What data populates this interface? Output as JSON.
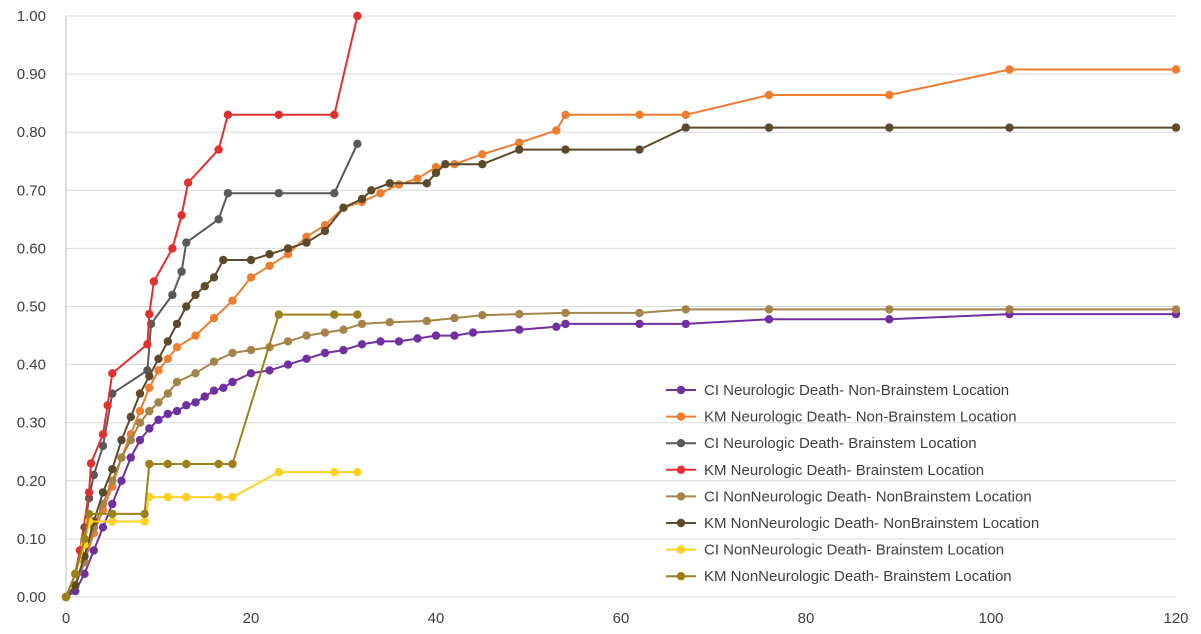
{
  "chart_data": {
    "type": "line",
    "title": "",
    "xlabel": "",
    "ylabel": "",
    "xlim": [
      0,
      120
    ],
    "ylim": [
      0,
      1
    ],
    "x_ticks": [
      "0",
      "20",
      "40",
      "60",
      "80",
      "100",
      "120"
    ],
    "y_ticks": [
      "0.00",
      "0.10",
      "0.20",
      "0.30",
      "0.40",
      "0.50",
      "0.60",
      "0.70",
      "0.80",
      "0.90",
      "1.00"
    ],
    "grid": "horizontal",
    "legend_position": "bottom-right",
    "series": [
      {
        "name": "CI Neurologic Death- Non-Brainstem Location",
        "color": "#7030a0",
        "points": [
          [
            0,
            0
          ],
          [
            1,
            0.01
          ],
          [
            2,
            0.04
          ],
          [
            3,
            0.08
          ],
          [
            4,
            0.12
          ],
          [
            5,
            0.16
          ],
          [
            6,
            0.2
          ],
          [
            7,
            0.24
          ],
          [
            8,
            0.27
          ],
          [
            9,
            0.29
          ],
          [
            10,
            0.305
          ],
          [
            11,
            0.315
          ],
          [
            12,
            0.32
          ],
          [
            13,
            0.33
          ],
          [
            14,
            0.335
          ],
          [
            15,
            0.345
          ],
          [
            16,
            0.355
          ],
          [
            17,
            0.36
          ],
          [
            18,
            0.37
          ],
          [
            20,
            0.385
          ],
          [
            22,
            0.39
          ],
          [
            24,
            0.4
          ],
          [
            26,
            0.41
          ],
          [
            28,
            0.42
          ],
          [
            30,
            0.425
          ],
          [
            32,
            0.435
          ],
          [
            34,
            0.44
          ],
          [
            36,
            0.44
          ],
          [
            38,
            0.445
          ],
          [
            40,
            0.45
          ],
          [
            42,
            0.45
          ],
          [
            44,
            0.455
          ],
          [
            49,
            0.46
          ],
          [
            53,
            0.465
          ],
          [
            54,
            0.47
          ],
          [
            62,
            0.47
          ],
          [
            67,
            0.47
          ],
          [
            76,
            0.478
          ],
          [
            89,
            0.478
          ],
          [
            102,
            0.487
          ],
          [
            120,
            0.487
          ]
        ]
      },
      {
        "name": "KM Neurologic Death- Non-Brainstem Location",
        "color": "#ed7d31",
        "points": [
          [
            0,
            0
          ],
          [
            1,
            0.02
          ],
          [
            2,
            0.06
          ],
          [
            3,
            0.11
          ],
          [
            4,
            0.15
          ],
          [
            5,
            0.19
          ],
          [
            6,
            0.24
          ],
          [
            7,
            0.28
          ],
          [
            8,
            0.32
          ],
          [
            9,
            0.36
          ],
          [
            10,
            0.39
          ],
          [
            11,
            0.41
          ],
          [
            12,
            0.43
          ],
          [
            14,
            0.45
          ],
          [
            16,
            0.48
          ],
          [
            18,
            0.51
          ],
          [
            20,
            0.55
          ],
          [
            22,
            0.57
          ],
          [
            24,
            0.59
          ],
          [
            26,
            0.62
          ],
          [
            28,
            0.64
          ],
          [
            30,
            0.67
          ],
          [
            32,
            0.68
          ],
          [
            34,
            0.695
          ],
          [
            36,
            0.71
          ],
          [
            38,
            0.72
          ],
          [
            40,
            0.74
          ],
          [
            42,
            0.745
          ],
          [
            45,
            0.762
          ],
          [
            49,
            0.782
          ],
          [
            53,
            0.803
          ],
          [
            54,
            0.83
          ],
          [
            62,
            0.83
          ],
          [
            67,
            0.83
          ],
          [
            76,
            0.864
          ],
          [
            89,
            0.864
          ],
          [
            102,
            0.908
          ],
          [
            120,
            0.908
          ]
        ]
      },
      {
        "name": "CI Neurologic Death- Brainstem Location",
        "color": "#595959",
        "points": [
          [
            0,
            0
          ],
          [
            1,
            0.04
          ],
          [
            2,
            0.12
          ],
          [
            2.5,
            0.17
          ],
          [
            3,
            0.21
          ],
          [
            4,
            0.26
          ],
          [
            5,
            0.35
          ],
          [
            8.8,
            0.39
          ],
          [
            9.2,
            0.47
          ],
          [
            11.5,
            0.52
          ],
          [
            12.5,
            0.56
          ],
          [
            13,
            0.61
          ],
          [
            16.5,
            0.65
          ],
          [
            17.5,
            0.695
          ],
          [
            23,
            0.695
          ],
          [
            29,
            0.695
          ],
          [
            31.5,
            0.78
          ]
        ]
      },
      {
        "name": "KM Neurologic Death- Brainstem Location",
        "color": "#e03030",
        "points": [
          [
            0,
            0
          ],
          [
            1,
            0.04
          ],
          [
            1.5,
            0.08
          ],
          [
            2.5,
            0.18
          ],
          [
            2.7,
            0.23
          ],
          [
            4,
            0.28
          ],
          [
            4.5,
            0.33
          ],
          [
            5,
            0.385
          ],
          [
            8.8,
            0.435
          ],
          [
            9,
            0.487
          ],
          [
            9.5,
            0.543
          ],
          [
            11.5,
            0.6
          ],
          [
            12.5,
            0.657
          ],
          [
            13.2,
            0.713
          ],
          [
            16.5,
            0.77
          ],
          [
            17.5,
            0.83
          ],
          [
            23,
            0.83
          ],
          [
            29,
            0.83
          ],
          [
            31.5,
            1.0
          ]
        ]
      },
      {
        "name": "CI NonNeurologic Death- NonBrainstem Location",
        "color": "#a5844a",
        "points": [
          [
            0,
            0
          ],
          [
            1,
            0.02
          ],
          [
            2,
            0.06
          ],
          [
            3,
            0.12
          ],
          [
            4,
            0.16
          ],
          [
            5,
            0.2
          ],
          [
            6,
            0.24
          ],
          [
            7,
            0.27
          ],
          [
            8,
            0.3
          ],
          [
            9,
            0.32
          ],
          [
            10,
            0.335
          ],
          [
            11,
            0.35
          ],
          [
            12,
            0.37
          ],
          [
            14,
            0.385
          ],
          [
            16,
            0.405
          ],
          [
            18,
            0.42
          ],
          [
            20,
            0.425
          ],
          [
            22,
            0.43
          ],
          [
            24,
            0.44
          ],
          [
            26,
            0.45
          ],
          [
            28,
            0.455
          ],
          [
            30,
            0.46
          ],
          [
            32,
            0.47
          ],
          [
            35,
            0.473
          ],
          [
            39,
            0.475
          ],
          [
            42,
            0.48
          ],
          [
            45,
            0.485
          ],
          [
            49,
            0.487
          ],
          [
            54,
            0.489
          ],
          [
            62,
            0.489
          ],
          [
            67,
            0.495
          ],
          [
            76,
            0.495
          ],
          [
            89,
            0.495
          ],
          [
            102,
            0.495
          ],
          [
            120,
            0.495
          ]
        ]
      },
      {
        "name": "KM NonNeurologic Death- NonBrainstem Location",
        "color": "#5c4a2a",
        "points": [
          [
            0,
            0
          ],
          [
            1,
            0.02
          ],
          [
            2,
            0.07
          ],
          [
            3,
            0.13
          ],
          [
            4,
            0.18
          ],
          [
            5,
            0.22
          ],
          [
            6,
            0.27
          ],
          [
            7,
            0.31
          ],
          [
            8,
            0.35
          ],
          [
            9,
            0.38
          ],
          [
            10,
            0.41
          ],
          [
            11,
            0.44
          ],
          [
            12,
            0.47
          ],
          [
            13,
            0.5
          ],
          [
            14,
            0.52
          ],
          [
            15,
            0.535
          ],
          [
            16,
            0.55
          ],
          [
            17,
            0.58
          ],
          [
            20,
            0.58
          ],
          [
            22,
            0.59
          ],
          [
            24,
            0.6
          ],
          [
            26,
            0.61
          ],
          [
            28,
            0.63
          ],
          [
            30,
            0.67
          ],
          [
            32,
            0.685
          ],
          [
            33,
            0.7
          ],
          [
            35,
            0.712
          ],
          [
            39,
            0.712
          ],
          [
            40,
            0.73
          ],
          [
            41,
            0.745
          ],
          [
            45,
            0.745
          ],
          [
            49,
            0.77
          ],
          [
            54,
            0.77
          ],
          [
            62,
            0.77
          ],
          [
            67,
            0.808
          ],
          [
            76,
            0.808
          ],
          [
            89,
            0.808
          ],
          [
            102,
            0.808
          ],
          [
            120,
            0.808
          ]
        ]
      },
      {
        "name": "CI NonNeurologic Death- Brainstem Location",
        "color": "#ffd020",
        "points": [
          [
            0,
            0
          ],
          [
            1,
            0.04
          ],
          [
            2,
            0.09
          ],
          [
            2.5,
            0.13
          ],
          [
            5,
            0.13
          ],
          [
            8.5,
            0.13
          ],
          [
            9,
            0.172
          ],
          [
            11,
            0.172
          ],
          [
            13,
            0.172
          ],
          [
            16.5,
            0.172
          ],
          [
            18,
            0.172
          ],
          [
            23,
            0.215
          ],
          [
            29,
            0.215
          ],
          [
            31.5,
            0.215
          ]
        ]
      },
      {
        "name": "KM NonNeurologic Death- Brainstem Location",
        "color": "#9c8018",
        "points": [
          [
            0,
            0
          ],
          [
            1,
            0.04
          ],
          [
            2,
            0.1
          ],
          [
            2.5,
            0.143
          ],
          [
            5,
            0.143
          ],
          [
            8.5,
            0.143
          ],
          [
            9,
            0.229
          ],
          [
            11,
            0.229
          ],
          [
            13,
            0.229
          ],
          [
            16.5,
            0.229
          ],
          [
            18,
            0.229
          ],
          [
            23,
            0.486
          ],
          [
            29,
            0.486
          ],
          [
            31.5,
            0.486
          ]
        ]
      }
    ]
  }
}
